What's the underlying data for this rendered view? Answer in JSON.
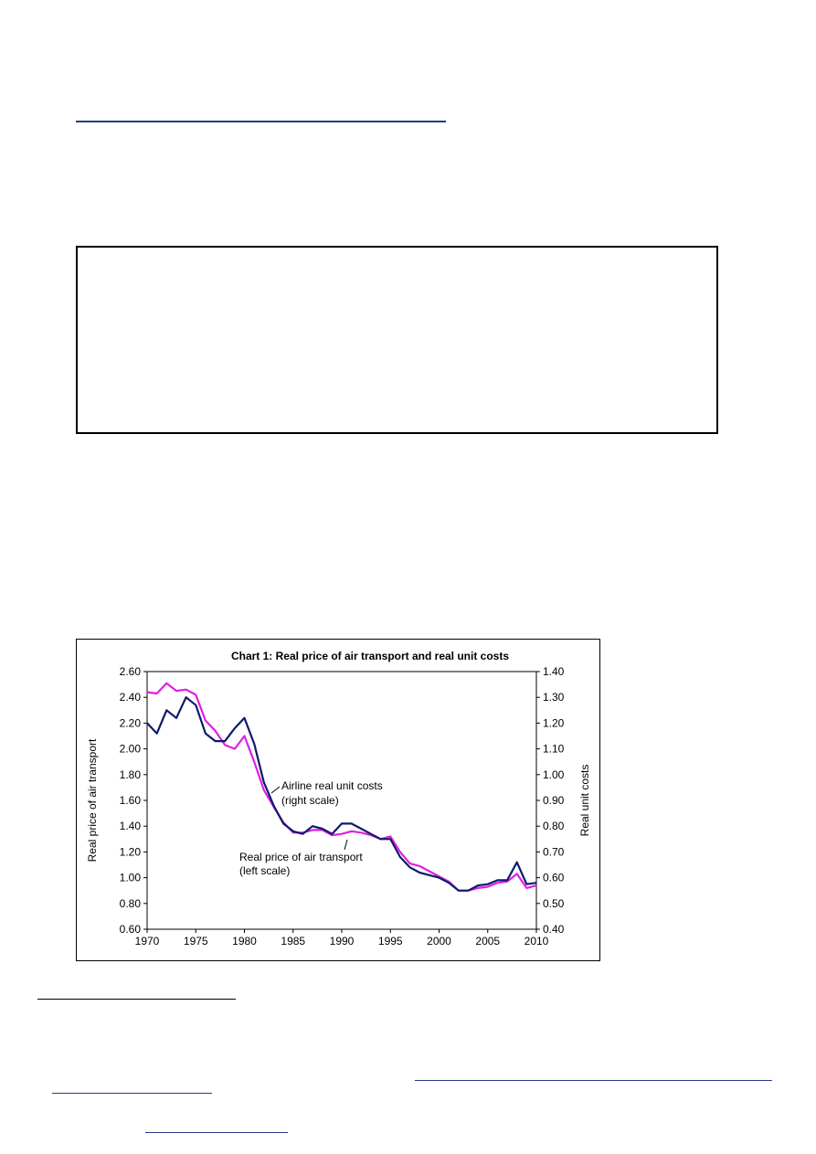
{
  "colors": {
    "link_rule": "#1f3c88",
    "footnote_rule": "#000000",
    "price_series": "#e020e0",
    "cost_series": "#0d1b6b"
  },
  "chart_data": {
    "type": "line",
    "title": "Chart 1: Real price of air transport and real unit costs",
    "ylabel_left": "Real price of air transport",
    "ylabel_right": "Real unit costs",
    "ylim_left": [
      0.6,
      2.6
    ],
    "ylim_right": [
      0.4,
      1.4
    ],
    "xlim": [
      1970,
      2010
    ],
    "x_ticks": [
      "1970",
      "1975",
      "1980",
      "1985",
      "1990",
      "1995",
      "2000",
      "2005",
      "2010"
    ],
    "y_ticks_left": [
      "0.60",
      "0.80",
      "1.00",
      "1.20",
      "1.40",
      "1.60",
      "1.80",
      "2.00",
      "2.20",
      "2.40",
      "2.60"
    ],
    "y_ticks_right": [
      "0.40",
      "0.50",
      "0.60",
      "0.70",
      "0.80",
      "0.90",
      "1.00",
      "1.10",
      "1.20",
      "1.30",
      "1.40"
    ],
    "grid": false,
    "legend": "none",
    "annotations": [
      {
        "id": "cost",
        "lines": [
          "Airline real unit costs",
          "(right scale)"
        ]
      },
      {
        "id": "price",
        "lines": [
          "Real price of air transport",
          "(left scale)"
        ]
      }
    ],
    "x": [
      1970,
      1971,
      1972,
      1973,
      1974,
      1975,
      1976,
      1977,
      1978,
      1979,
      1980,
      1981,
      1982,
      1983,
      1984,
      1985,
      1986,
      1987,
      1988,
      1989,
      1990,
      1991,
      1992,
      1993,
      1994,
      1995,
      1996,
      1997,
      1998,
      1999,
      2000,
      2001,
      2002,
      2003,
      2004,
      2005,
      2006,
      2007,
      2008,
      2009,
      2010
    ],
    "series": [
      {
        "name": "Real price of air transport",
        "axis": "left",
        "color": "#e020e0",
        "values": [
          2.44,
          2.43,
          2.51,
          2.45,
          2.46,
          2.42,
          2.22,
          2.14,
          2.03,
          2.0,
          2.1,
          1.9,
          1.68,
          1.55,
          1.43,
          1.35,
          1.35,
          1.37,
          1.37,
          1.33,
          1.34,
          1.36,
          1.35,
          1.33,
          1.3,
          1.32,
          1.2,
          1.11,
          1.09,
          1.05,
          1.01,
          0.97,
          0.9,
          0.9,
          0.92,
          0.93,
          0.96,
          0.97,
          1.03,
          0.92,
          0.94
        ]
      },
      {
        "name": "Airline real unit costs",
        "axis": "right",
        "color": "#0d1b6b",
        "values": [
          1.2,
          1.16,
          1.25,
          1.22,
          1.3,
          1.27,
          1.16,
          1.13,
          1.13,
          1.18,
          1.22,
          1.12,
          0.97,
          0.88,
          0.81,
          0.78,
          0.77,
          0.8,
          0.79,
          0.77,
          0.81,
          0.81,
          0.79,
          0.77,
          0.75,
          0.75,
          0.68,
          0.64,
          0.62,
          0.61,
          0.6,
          0.58,
          0.55,
          0.55,
          0.57,
          0.575,
          0.59,
          0.59,
          0.66,
          0.575,
          0.58
        ]
      }
    ]
  }
}
